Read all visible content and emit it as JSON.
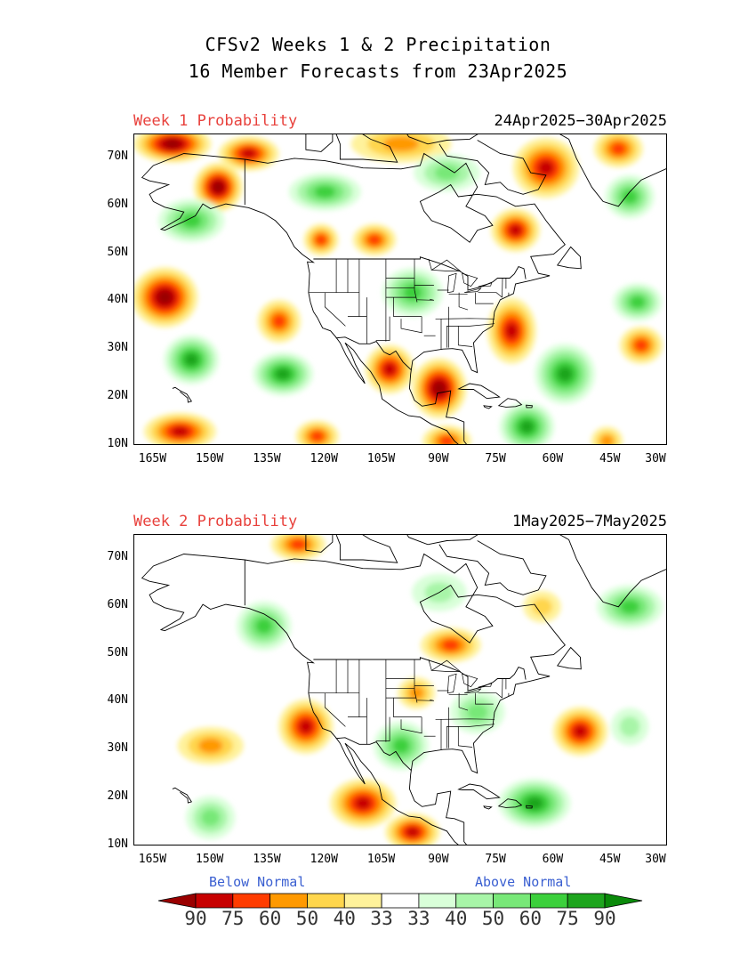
{
  "title": {
    "line1": "CFSv2 Weeks 1 & 2 Precipitation",
    "line2": "16 Member Forecasts from 23Apr2025"
  },
  "panels": [
    {
      "label": "Week 1 Probability",
      "dates": "24Apr2025−30Apr2025",
      "anomalies": [
        {
          "cat": "below",
          "lon": -160,
          "lat": 73,
          "rx": 10,
          "ry": 3,
          "p": 90
        },
        {
          "cat": "below",
          "lon": -140,
          "lat": 71,
          "rx": 7,
          "ry": 2.5,
          "p": 75
        },
        {
          "cat": "below",
          "lon": -148,
          "lat": 64,
          "rx": 5,
          "ry": 5,
          "p": 90
        },
        {
          "cat": "below",
          "lon": -100,
          "lat": 73,
          "rx": 14,
          "ry": 3,
          "p": 50
        },
        {
          "cat": "below",
          "lon": -62,
          "lat": 68,
          "rx": 8,
          "ry": 7,
          "p": 75
        },
        {
          "cat": "below",
          "lon": -43,
          "lat": 72,
          "rx": 5,
          "ry": 3,
          "p": 60
        },
        {
          "cat": "below",
          "lon": -70,
          "lat": 55,
          "rx": 5,
          "ry": 4,
          "p": 75
        },
        {
          "cat": "below",
          "lon": -121,
          "lat": 53,
          "rx": 2.5,
          "ry": 2,
          "p": 60
        },
        {
          "cat": "below",
          "lon": -107,
          "lat": 53,
          "rx": 4,
          "ry": 2,
          "p": 60
        },
        {
          "cat": "below",
          "lon": -162,
          "lat": 41,
          "rx": 8,
          "ry": 7,
          "p": 90
        },
        {
          "cat": "below",
          "lon": -132,
          "lat": 36,
          "rx": 4,
          "ry": 4,
          "p": 60
        },
        {
          "cat": "below",
          "lon": -90,
          "lat": 22,
          "rx": 6,
          "ry": 7,
          "p": 90
        },
        {
          "cat": "below",
          "lon": -103,
          "lat": 26,
          "rx": 5,
          "ry": 5,
          "p": 75
        },
        {
          "cat": "below",
          "lon": -71,
          "lat": 34,
          "rx": 5,
          "ry": 8,
          "p": 75
        },
        {
          "cat": "below",
          "lon": -37,
          "lat": 31,
          "rx": 4,
          "ry": 3,
          "p": 60
        },
        {
          "cat": "below",
          "lon": -158,
          "lat": 13,
          "rx": 9,
          "ry": 3,
          "p": 75
        },
        {
          "cat": "below",
          "lon": -122,
          "lat": 12,
          "rx": 4,
          "ry": 2,
          "p": 60
        },
        {
          "cat": "below",
          "lon": -88,
          "lat": 11,
          "rx": 5,
          "ry": 2,
          "p": 60
        },
        {
          "cat": "below",
          "lon": -46,
          "lat": 11,
          "rx": 2,
          "ry": 1.5,
          "p": 50
        },
        {
          "cat": "above",
          "lon": -120,
          "lat": 63,
          "rx": 9,
          "ry": 3,
          "p": 60
        },
        {
          "cat": "above",
          "lon": -155,
          "lat": 57,
          "rx": 8,
          "ry": 4,
          "p": 60
        },
        {
          "cat": "above",
          "lon": -88,
          "lat": 67,
          "rx": 8,
          "ry": 3,
          "p": 50
        },
        {
          "cat": "above",
          "lon": -97,
          "lat": 42,
          "rx": 7,
          "ry": 5,
          "p": 60
        },
        {
          "cat": "above",
          "lon": -155,
          "lat": 28,
          "rx": 6,
          "ry": 5,
          "p": 75
        },
        {
          "cat": "above",
          "lon": -131,
          "lat": 25,
          "rx": 7,
          "ry": 4,
          "p": 75
        },
        {
          "cat": "above",
          "lon": -57,
          "lat": 25,
          "rx": 7,
          "ry": 7,
          "p": 75
        },
        {
          "cat": "above",
          "lon": -38,
          "lat": 40,
          "rx": 5,
          "ry": 3,
          "p": 60
        },
        {
          "cat": "above",
          "lon": -40,
          "lat": 62,
          "rx": 5,
          "ry": 4,
          "p": 60
        },
        {
          "cat": "above",
          "lon": -67,
          "lat": 14,
          "rx": 6,
          "ry": 5,
          "p": 75
        }
      ]
    },
    {
      "label": "Week 2 Probability",
      "dates": "1May2025−7May2025",
      "anomalies": [
        {
          "cat": "below",
          "lon": -125,
          "lat": 35,
          "rx": 6,
          "ry": 6,
          "p": 75
        },
        {
          "cat": "below",
          "lon": -150,
          "lat": 31,
          "rx": 8,
          "ry": 3,
          "p": 50
        },
        {
          "cat": "below",
          "lon": -110,
          "lat": 19,
          "rx": 8,
          "ry": 5,
          "p": 75
        },
        {
          "cat": "below",
          "lon": -97,
          "lat": 13,
          "rx": 6,
          "ry": 3,
          "p": 75
        },
        {
          "cat": "below",
          "lon": -87,
          "lat": 52,
          "rx": 7,
          "ry": 2.5,
          "p": 60
        },
        {
          "cat": "below",
          "lon": -53,
          "lat": 34,
          "rx": 6,
          "ry": 5,
          "p": 75
        },
        {
          "cat": "below",
          "lon": -127,
          "lat": 73,
          "rx": 6,
          "ry": 2,
          "p": 60
        },
        {
          "cat": "below",
          "lon": -96,
          "lat": 42,
          "rx": 3,
          "ry": 2,
          "p": 50
        },
        {
          "cat": "below",
          "lon": -63,
          "lat": 60,
          "rx": 3,
          "ry": 2,
          "p": 40
        },
        {
          "cat": "above",
          "lon": -136,
          "lat": 56,
          "rx": 6,
          "ry": 5,
          "p": 60
        },
        {
          "cat": "above",
          "lon": -100,
          "lat": 31,
          "rx": 6,
          "ry": 5,
          "p": 60
        },
        {
          "cat": "above",
          "lon": -65,
          "lat": 19,
          "rx": 9,
          "ry": 5,
          "p": 75
        },
        {
          "cat": "above",
          "lon": -80,
          "lat": 38,
          "rx": 6,
          "ry": 4,
          "p": 50
        },
        {
          "cat": "above",
          "lon": -40,
          "lat": 60,
          "rx": 8,
          "ry": 4,
          "p": 60
        },
        {
          "cat": "above",
          "lon": -150,
          "lat": 16,
          "rx": 5,
          "ry": 4,
          "p": 50
        },
        {
          "cat": "above",
          "lon": -90,
          "lat": 63,
          "rx": 6,
          "ry": 3,
          "p": 40
        },
        {
          "cat": "above",
          "lon": -40,
          "lat": 35,
          "rx": 3,
          "ry": 3,
          "p": 40
        }
      ]
    }
  ],
  "axes": {
    "lon_range": [
      -170,
      -30
    ],
    "lat_range": [
      10,
      75
    ],
    "lat_ticks": [
      "70N",
      "60N",
      "50N",
      "40N",
      "30N",
      "20N",
      "10N"
    ],
    "lat_values": [
      70,
      60,
      50,
      40,
      30,
      20,
      10
    ],
    "lon_ticks": [
      "165W",
      "150W",
      "135W",
      "120W",
      "105W",
      "90W",
      "75W",
      "60W",
      "45W",
      "30W"
    ],
    "lon_values": [
      -165,
      -150,
      -135,
      -120,
      -105,
      -90,
      -75,
      -60,
      -45,
      -30
    ]
  },
  "legend": {
    "below_label": "Below Normal",
    "above_label": "Above Normal",
    "values": [
      "90",
      "75",
      "60",
      "50",
      "40",
      "33",
      "33",
      "40",
      "50",
      "60",
      "75",
      "90"
    ],
    "colors": [
      "#9a0000",
      "#c70000",
      "#ff3c00",
      "#ff9900",
      "#ffd64d",
      "#fff29b",
      "#ffffff",
      "#d9ffd9",
      "#a8f5a8",
      "#78e878",
      "#3cd03c",
      "#1ea51e",
      "#0a8a0a"
    ]
  }
}
